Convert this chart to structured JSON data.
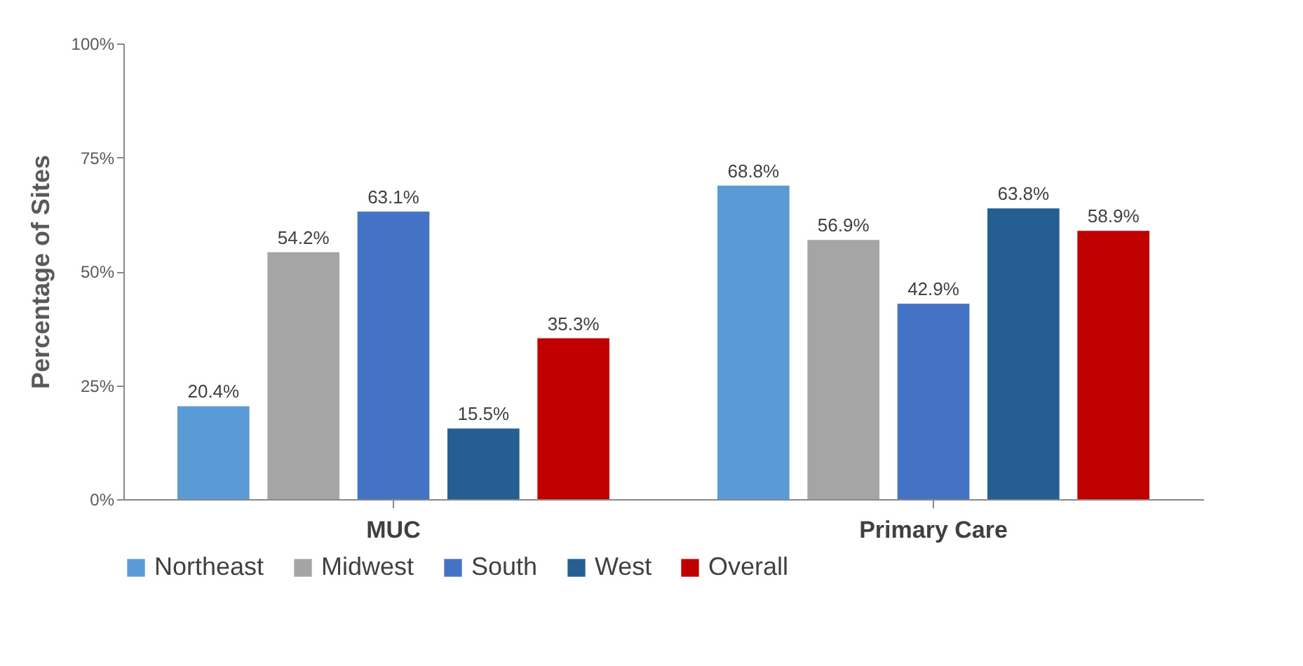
{
  "chart_data": {
    "type": "bar",
    "ylabel": "Percentage of Sites",
    "categories": [
      "MUC",
      "Primary Care"
    ],
    "series": [
      {
        "name": "Northeast",
        "color": "#5b9bd5",
        "values": [
          20.4,
          68.8
        ],
        "value_labels": [
          "20.4%",
          "68.8%"
        ]
      },
      {
        "name": "Midwest",
        "color": "#a5a5a5",
        "values": [
          54.2,
          56.9
        ],
        "value_labels": [
          "54.2%",
          "56.9%"
        ]
      },
      {
        "name": "South",
        "color": "#4472c4",
        "values": [
          63.1,
          42.9
        ],
        "value_labels": [
          "63.1%",
          "42.9%"
        ]
      },
      {
        "name": "West",
        "color": "#255e91",
        "values": [
          15.5,
          63.8
        ],
        "value_labels": [
          "15.5%",
          "63.8%"
        ]
      },
      {
        "name": "Overall",
        "color": "#c00000",
        "values": [
          35.3,
          58.9
        ],
        "value_labels": [
          "35.3%",
          "58.9%"
        ]
      }
    ],
    "ylim": [
      0,
      100
    ],
    "yticks": [
      {
        "value": 0,
        "label": "0%"
      },
      {
        "value": 25,
        "label": "25%"
      },
      {
        "value": 50,
        "label": "50%"
      },
      {
        "value": 75,
        "label": "75%"
      },
      {
        "value": 100,
        "label": "100%"
      }
    ],
    "grid": false,
    "legend": "bottom"
  }
}
